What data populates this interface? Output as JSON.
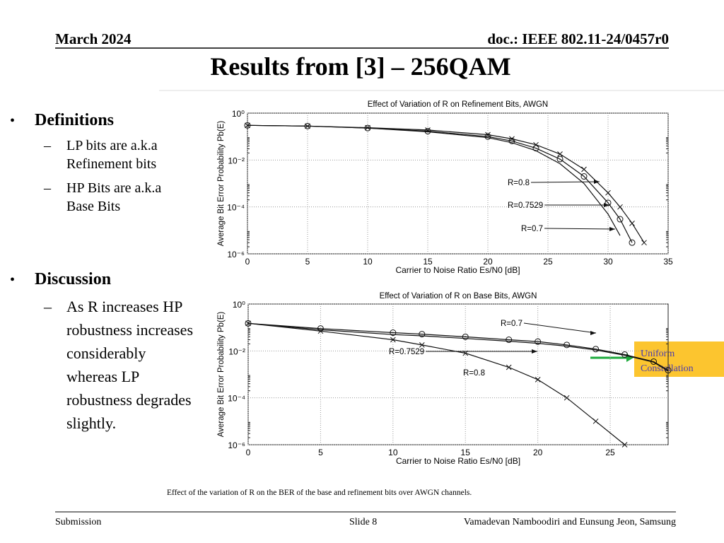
{
  "header": {
    "date": "March  2024",
    "doc": "doc.: IEEE 802.11-24/0457r0",
    "title": "Results  from [3] – 256QAM"
  },
  "bullets": [
    {
      "heading": "Definitions",
      "items": [
        "LP bits are a.k.a Refinement bits",
        " HP Bits are a.k.a Base Bits"
      ]
    },
    {
      "heading": "Discussion",
      "items": [
        "As  R increases HP robustness increases considerably whereas LP robustness degrades slightly."
      ]
    }
  ],
  "callout": "Uniform Constellation",
  "caption": "Effect of the variation of R on the BER of the base and refinement bits over AWGN channels.",
  "footer": {
    "left": "Submission",
    "slide": "Slide 8",
    "authors": "Vamadevan Namboodiri and Eunsung Jeon, Samsung"
  },
  "chart_data": [
    {
      "type": "line",
      "title": "Effect of Variation of R on Refinement Bits, AWGN",
      "x_label": "Carrier to Noise Ratio Es/N0 [dB]",
      "y_label": "Average Bit Error Probability Pb(E)",
      "log_y": true,
      "grid": true,
      "x": [
        0,
        5,
        10,
        15,
        20,
        22,
        24,
        26,
        28,
        30,
        31,
        32,
        33,
        34
      ],
      "series": [
        {
          "color": "#111111",
          "marker": "x",
          "values": [
            0.3,
            0.28,
            0.24,
            0.19,
            0.12,
            0.08,
            0.045,
            0.018,
            0.004,
            0.0004,
            0.0001,
            2e-05,
            3e-06,
            null
          ]
        },
        {
          "color": "#111111",
          "marker": "o",
          "values": [
            0.3,
            0.28,
            0.23,
            0.17,
            0.1,
            0.065,
            0.032,
            0.011,
            0.002,
            0.00015,
            3e-05,
            3e-06,
            null,
            null
          ]
        },
        {
          "color": "#111111",
          "marker": "none",
          "values": [
            0.3,
            0.28,
            0.23,
            0.16,
            0.09,
            0.055,
            0.025,
            0.007,
            0.001,
            5e-05,
            6e-06,
            null,
            null,
            null
          ]
        }
      ],
      "annotations": [
        "R=0.8",
        "R=0.7529",
        "R=0.7"
      ],
      "xlim": [
        0,
        35
      ],
      "xticks": [
        0,
        5,
        10,
        15,
        20,
        25,
        30,
        35
      ],
      "ylim": [
        1e-06,
        1
      ],
      "yticks": [
        {
          "value": 1,
          "label": "10⁰"
        },
        {
          "value": 0.01,
          "label": "10⁻²"
        },
        {
          "value": 0.0001,
          "label": "10⁻⁴"
        },
        {
          "value": 1e-06,
          "label": "10⁻⁶"
        }
      ]
    },
    {
      "type": "line",
      "title": "Effect of Variation of R on Base Bits, AWGN",
      "x_label": "Carrier to Noise Ratio Es/N0 [dB]",
      "y_label": "Average Bit Error Probability Pb(E)",
      "log_y": true,
      "grid": true,
      "x": [
        0,
        5,
        10,
        12,
        15,
        18,
        20,
        22,
        24,
        26,
        28,
        29
      ],
      "series": [
        {
          "color": "#111111",
          "marker": "o",
          "values": [
            0.15,
            0.09,
            0.06,
            0.052,
            0.04,
            0.03,
            0.025,
            0.018,
            0.012,
            0.007,
            0.0035,
            0.0015
          ]
        },
        {
          "color": "#111111",
          "marker": "none",
          "values": [
            0.15,
            0.08,
            0.05,
            0.044,
            0.034,
            0.026,
            0.021,
            0.016,
            0.011,
            0.0065,
            0.0033,
            0.0014
          ]
        },
        {
          "color": "#111111",
          "marker": "x",
          "values": [
            0.15,
            0.07,
            0.03,
            0.018,
            0.008,
            0.002,
            0.0006,
            0.0001,
            1e-05,
            1e-06,
            null,
            null
          ]
        }
      ],
      "annotations": [
        "R=0.7",
        "R=0.7529",
        "R=0.8"
      ],
      "xlim": [
        0,
        29
      ],
      "xticks": [
        0,
        5,
        10,
        15,
        20,
        25
      ],
      "ylim": [
        1e-06,
        1
      ],
      "yticks": [
        {
          "value": 1,
          "label": "10⁰"
        },
        {
          "value": 0.01,
          "label": "10⁻²"
        },
        {
          "value": 0.0001,
          "label": "10⁻⁴"
        },
        {
          "value": 1e-06,
          "label": "10⁻⁶"
        }
      ]
    }
  ]
}
